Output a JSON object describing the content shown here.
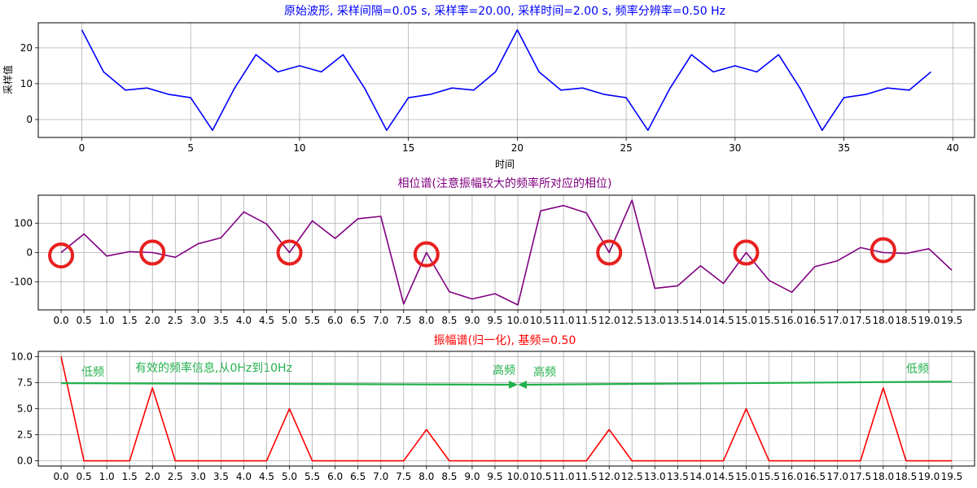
{
  "chart_data": [
    {
      "type": "line",
      "title": "原始波形, 采样间隔=0.05 s, 采样率=20.00, 采样时间=2.00 s, 频率分辨率=0.50 Hz",
      "title_color": "#0000ff",
      "xlabel": "时间",
      "ylabel": "采样值",
      "xlim": [
        -2,
        41
      ],
      "ylim": [
        -5,
        27
      ],
      "xticks": [
        0,
        5,
        10,
        15,
        20,
        25,
        30,
        35,
        40
      ],
      "yticks": [
        0,
        10,
        20
      ],
      "grid": true,
      "series": [
        {
          "color": "#0000ff",
          "x": [
            0,
            1,
            2,
            3,
            4,
            5,
            6,
            7,
            8,
            9,
            10,
            11,
            12,
            13,
            14,
            15,
            16,
            17,
            18,
            19,
            20,
            21,
            22,
            23,
            24,
            25,
            26,
            27,
            28,
            29,
            30,
            31,
            32,
            33,
            34,
            35,
            36,
            37,
            38,
            39
          ],
          "values": [
            25.0,
            13.3,
            8.2,
            8.8,
            7.0,
            6.1,
            -3.0,
            8.6,
            18.1,
            13.3,
            15.0,
            13.3,
            18.1,
            8.6,
            -3.0,
            6.1,
            7.0,
            8.8,
            8.2,
            13.3,
            25.0,
            13.3,
            8.2,
            8.8,
            7.0,
            6.1,
            -3.0,
            8.6,
            18.1,
            13.3,
            15.0,
            13.3,
            18.1,
            8.6,
            -3.0,
            6.1,
            7.0,
            8.8,
            8.2,
            13.3
          ]
        }
      ]
    },
    {
      "type": "line",
      "title": "相位谱(注意振幅较大的频率所对应的相位)",
      "title_color": "#800080",
      "xlim": [
        -0.5,
        20.0
      ],
      "ylim": [
        -195,
        195
      ],
      "xticks": [
        0.0,
        0.5,
        1.0,
        1.5,
        2.0,
        2.5,
        3.0,
        3.5,
        4.0,
        4.5,
        5.0,
        5.5,
        6.0,
        6.5,
        7.0,
        7.5,
        8.0,
        8.5,
        9.0,
        9.5,
        10.0,
        10.5,
        11.0,
        11.5,
        12.0,
        12.5,
        13.0,
        13.5,
        14.0,
        14.5,
        15.0,
        15.5,
        16.0,
        16.5,
        17.0,
        17.5,
        18.0,
        18.5,
        19.0,
        19.5
      ],
      "xtick_labels": [
        "0.0",
        "0.5",
        "1.0",
        "1.5",
        "2.0",
        "2.5",
        "3.0",
        "3.5",
        "4.0",
        "4.5",
        "5.0",
        "5.5",
        "6.0",
        "6.5",
        "7.0",
        "7.5",
        "8.0",
        "8.5",
        "9.0",
        "9.5",
        "10.0",
        "10.5",
        "11.0",
        "11.5",
        "12.0",
        "12.5",
        "13.0",
        "13.5",
        "14.0",
        "14.5",
        "15.0",
        "15.5",
        "16.0",
        "16.5",
        "17.0",
        "17.5",
        "18.0",
        "18.5",
        "19.0",
        "19.5"
      ],
      "yticks": [
        -100,
        0,
        100
      ],
      "grid": true,
      "series": [
        {
          "color": "#800080",
          "x": [
            0.0,
            0.5,
            1.0,
            1.5,
            2.0,
            2.5,
            3.0,
            3.5,
            4.0,
            4.5,
            5.0,
            5.5,
            6.0,
            6.5,
            7.0,
            7.5,
            8.0,
            8.5,
            9.0,
            9.5,
            10.0,
            10.5,
            11.0,
            11.5,
            12.0,
            12.5,
            13.0,
            13.5,
            14.0,
            14.5,
            15.0,
            15.5,
            16.0,
            16.5,
            17.0,
            17.5,
            18.0,
            18.5,
            19.0,
            19.5
          ],
          "values": [
            0,
            63,
            -12,
            3,
            0,
            -16,
            30,
            50,
            138,
            97,
            0,
            108,
            48,
            115,
            123,
            -175,
            0,
            -133,
            -158,
            -140,
            -178,
            142,
            160,
            135,
            0,
            178,
            -122,
            -113,
            -45,
            -105,
            0,
            -95,
            -135,
            -48,
            -28,
            17,
            0,
            -3,
            13,
            -60
          ]
        }
      ],
      "highlight_x": [
        0.0,
        2.0,
        5.0,
        8.0,
        12.0,
        15.0,
        18.0
      ],
      "highlight_y": [
        -10,
        0,
        0,
        -6,
        0,
        0,
        8
      ],
      "highlight_color": "#e82020"
    },
    {
      "type": "line",
      "title": "振幅谱(归一化), 基频=0.50",
      "title_color": "#ff0000",
      "xlim": [
        -0.5,
        20.0
      ],
      "ylim": [
        -0.5,
        10.5
      ],
      "xticks": [
        0.0,
        0.5,
        1.0,
        1.5,
        2.0,
        2.5,
        3.0,
        3.5,
        4.0,
        4.5,
        5.0,
        5.5,
        6.0,
        6.5,
        7.0,
        7.5,
        8.0,
        8.5,
        9.0,
        9.5,
        10.0,
        10.5,
        11.0,
        11.5,
        12.0,
        12.5,
        13.0,
        13.5,
        14.0,
        14.5,
        15.0,
        15.5,
        16.0,
        16.5,
        17.0,
        17.5,
        18.0,
        18.5,
        19.0,
        19.5
      ],
      "xtick_labels": [
        "0.0",
        "0.5",
        "1.0",
        "1.5",
        "2.0",
        "2.5",
        "3.0",
        "3.5",
        "4.0",
        "4.5",
        "5.0",
        "5.5",
        "6.0",
        "6.5",
        "7.0",
        "7.5",
        "8.0",
        "8.5",
        "9.0",
        "9.5",
        "10.0",
        "10.5",
        "11.0",
        "11.5",
        "12.0",
        "12.5",
        "13.0",
        "13.5",
        "14.0",
        "14.5",
        "15.0",
        "15.5",
        "16.0",
        "16.5",
        "17.0",
        "17.5",
        "18.0",
        "18.5",
        "19.0",
        "19.5"
      ],
      "yticks": [
        0.0,
        2.5,
        5.0,
        7.5,
        10.0
      ],
      "ytick_labels": [
        "0.0",
        "2.5",
        "5.0",
        "7.5",
        "10.0"
      ],
      "grid": true,
      "series": [
        {
          "color": "#ff0000",
          "x": [
            0.0,
            0.5,
            1.0,
            1.5,
            2.0,
            2.5,
            3.0,
            3.5,
            4.0,
            4.5,
            5.0,
            5.5,
            6.0,
            6.5,
            7.0,
            7.5,
            8.0,
            8.5,
            9.0,
            9.5,
            10.0,
            10.5,
            11.0,
            11.5,
            12.0,
            12.5,
            13.0,
            13.5,
            14.0,
            14.5,
            15.0,
            15.5,
            16.0,
            16.5,
            17.0,
            17.5,
            18.0,
            18.5,
            19.0,
            19.5
          ],
          "values": [
            10,
            0,
            0,
            0,
            7,
            0,
            0,
            0,
            0,
            0,
            5,
            0,
            0,
            0,
            0,
            0,
            3,
            0,
            0,
            0,
            0,
            0,
            0,
            0,
            3,
            0,
            0,
            0,
            0,
            0,
            5,
            0,
            0,
            0,
            0,
            0,
            7,
            0,
            0,
            0
          ]
        }
      ],
      "annotation_color": "#22b14c",
      "annotations": {
        "low_left": "低频",
        "note": "有效的频率信息,从0Hz到10Hz",
        "high_left": "高频",
        "high_right": "高频",
        "low_right": "低频"
      },
      "arrow_left_x": [
        0.0,
        10.0
      ],
      "arrow_left_y": [
        7.45,
        7.3
      ],
      "arrow_right_x": [
        19.5,
        10.0
      ],
      "arrow_right_y": [
        7.6,
        7.3
      ]
    }
  ]
}
